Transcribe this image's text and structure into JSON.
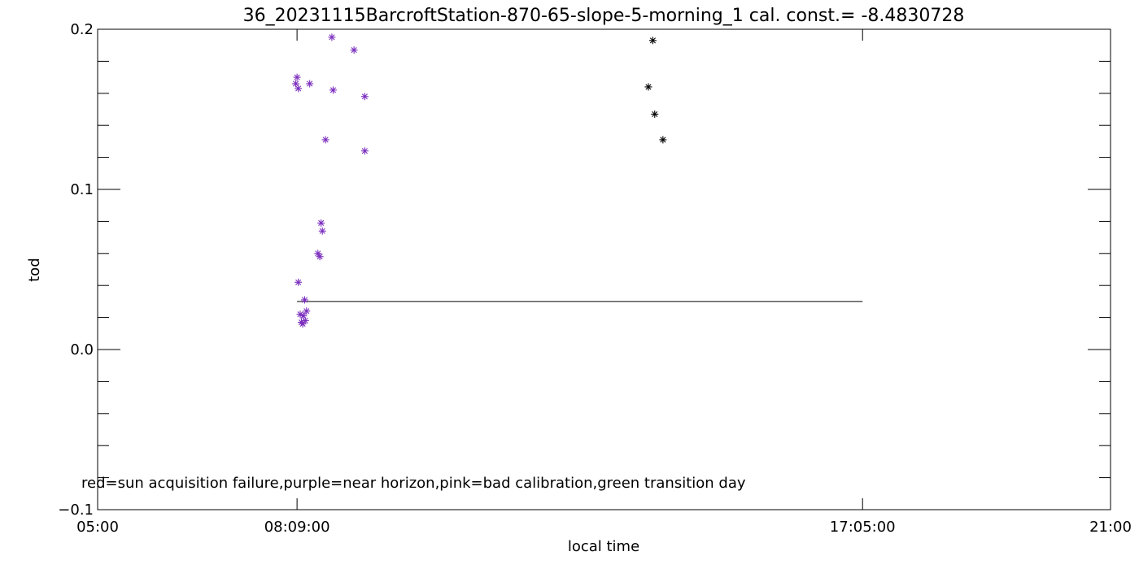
{
  "chart_data": {
    "type": "scatter",
    "title": "36_20231115BarcroftStation-870-65-slope-5-morning_1 cal. const.= -8.4830728",
    "xlabel": "local time",
    "ylabel": "tod",
    "x_axis_unit": "hours",
    "xlim": [
      5.0,
      21.0
    ],
    "ylim": [
      -0.1,
      0.2
    ],
    "x_ticks": [
      {
        "value": 5.0,
        "label": "05:00"
      },
      {
        "value": 8.15,
        "label": "08:09:00"
      },
      {
        "value": 17.0833,
        "label": "17:05:00"
      },
      {
        "value": 21.0,
        "label": "21:00"
      }
    ],
    "y_ticks": [
      {
        "value": -0.1,
        "label": "−0.1"
      },
      {
        "value": 0.0,
        "label": "0.0"
      },
      {
        "value": 0.1,
        "label": "0.1"
      },
      {
        "value": 0.2,
        "label": "0.2"
      }
    ],
    "reference_line": {
      "x_start": 8.15,
      "x_end": 17.0833,
      "y": 0.03,
      "color": "#000000"
    },
    "note": "red=sun acquisition failure,purple=near horizon,pink=bad calibration,green transition day",
    "colors": {
      "near_horizon": "#7b2fbe",
      "normal": "#000000"
    },
    "series": [
      {
        "color_key": "near_horizon",
        "points": [
          {
            "x": 8.15,
            "y": 0.17
          },
          {
            "x": 8.13,
            "y": 0.166
          },
          {
            "x": 8.17,
            "y": 0.163
          },
          {
            "x": 8.35,
            "y": 0.166
          },
          {
            "x": 8.6,
            "y": 0.131
          },
          {
            "x": 8.7,
            "y": 0.195
          },
          {
            "x": 8.72,
            "y": 0.162
          },
          {
            "x": 9.05,
            "y": 0.187
          },
          {
            "x": 9.22,
            "y": 0.158
          },
          {
            "x": 9.22,
            "y": 0.124
          },
          {
            "x": 8.53,
            "y": 0.079
          },
          {
            "x": 8.55,
            "y": 0.074
          },
          {
            "x": 8.48,
            "y": 0.06
          },
          {
            "x": 8.51,
            "y": 0.058
          },
          {
            "x": 8.17,
            "y": 0.042
          },
          {
            "x": 8.27,
            "y": 0.031
          },
          {
            "x": 8.2,
            "y": 0.022
          },
          {
            "x": 8.25,
            "y": 0.021
          },
          {
            "x": 8.3,
            "y": 0.024
          },
          {
            "x": 8.22,
            "y": 0.017
          },
          {
            "x": 8.28,
            "y": 0.018
          },
          {
            "x": 8.24,
            "y": 0.016
          }
        ]
      },
      {
        "color_key": "normal",
        "points": [
          {
            "x": 13.7,
            "y": 0.164
          },
          {
            "x": 13.77,
            "y": 0.193
          },
          {
            "x": 13.8,
            "y": 0.147
          },
          {
            "x": 13.93,
            "y": 0.131
          }
        ]
      }
    ]
  }
}
